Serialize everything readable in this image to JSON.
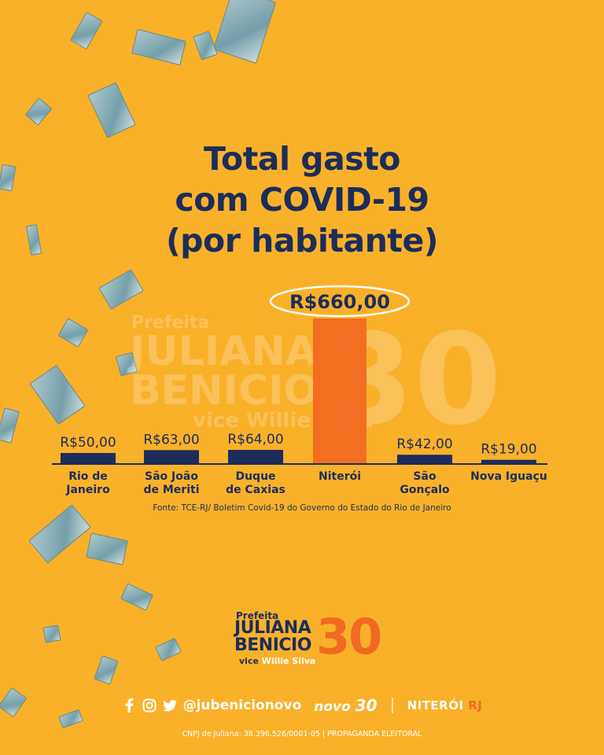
{
  "title": {
    "line1": "Total gasto",
    "line2": "com COVID-19",
    "line3": "(por habitante)"
  },
  "watermark": {
    "prefix": "Prefeita",
    "name1": "JULIANA",
    "name2": "BENICIO",
    "vice": "vice Willie Silva",
    "number": "30"
  },
  "chart_data": {
    "type": "bar",
    "title": "Total gasto com COVID-19 (por habitante)",
    "categories": [
      [
        "Rio de",
        "Janeiro"
      ],
      [
        "São João",
        "de Meriti"
      ],
      [
        "Duque",
        "de Caxias"
      ],
      [
        "Niterói"
      ],
      [
        "São",
        "Gonçalo"
      ],
      [
        "Nova Iguaçu"
      ]
    ],
    "values": [
      50,
      63,
      64,
      660,
      42,
      19
    ],
    "value_labels": [
      "R$50,00",
      "R$63,00",
      "R$64,00",
      "R$660,00",
      "R$42,00",
      "R$19,00"
    ],
    "highlight_index": 3,
    "bar_color": "#1c2d5a",
    "highlight_color": "#f26a21",
    "ylim": [
      0,
      660
    ],
    "grid": false,
    "legend": "none"
  },
  "source": "Fonte: TCE-RJ/ Boletim Covid-19 do Governo do Estado do Rio de Janeiro",
  "logo": {
    "prefix": "Prefeita",
    "name1": "JULIANA",
    "name2": "BENICIO",
    "vice_label": "vice",
    "vice_name": "Willie Silva",
    "number": "30"
  },
  "footer": {
    "handle": "@jubenicionovo",
    "party": "novo",
    "party_number": "30",
    "city": "NITERÓI",
    "state": "RJ",
    "icons": [
      "facebook-icon",
      "instagram-icon",
      "twitter-icon"
    ]
  },
  "cnpj": "CNPJ de Juliana: 38.396.526/0001-05 | PROPAGANDA ELEITORAL"
}
